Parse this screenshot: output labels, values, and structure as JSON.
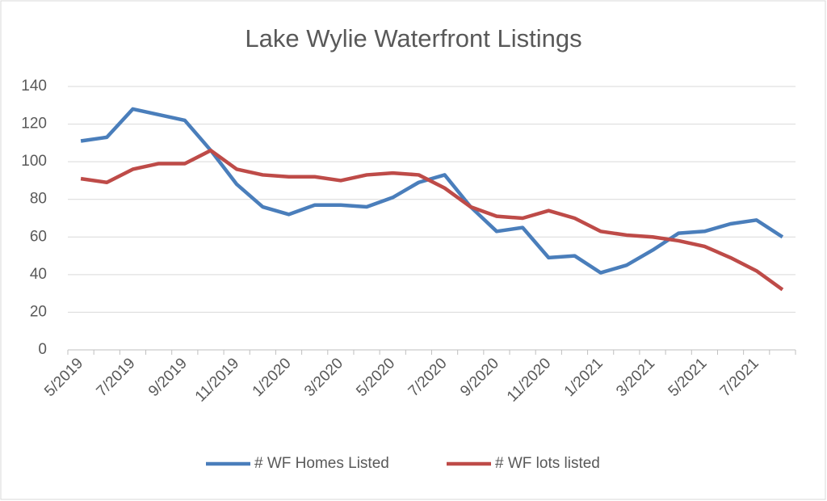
{
  "chart_data": {
    "type": "line",
    "title": "Lake Wylie Waterfront Listings",
    "categories": [
      "5/2019",
      null,
      "7/2019",
      null,
      "9/2019",
      null,
      "11/2019",
      null,
      "1/2020",
      null,
      "3/2020",
      null,
      "5/2020",
      null,
      "7/2020",
      null,
      "9/2020",
      null,
      "11/2020",
      null,
      "1/2021",
      null,
      "3/2021",
      null,
      "5/2021",
      null,
      "7/2021",
      null
    ],
    "series": [
      {
        "name": "# WF Homes Listed",
        "color": "#4a7ebb",
        "values": [
          111,
          113,
          128,
          125,
          122,
          106,
          88,
          76,
          72,
          77,
          77,
          76,
          81,
          89,
          93,
          76,
          63,
          65,
          49,
          50,
          41,
          45,
          53,
          62,
          63,
          67,
          69,
          60
        ]
      },
      {
        "name": "# WF lots listed",
        "color": "#be4b48",
        "values": [
          91,
          89,
          96,
          99,
          99,
          106,
          96,
          93,
          92,
          92,
          90,
          93,
          94,
          93,
          86,
          76,
          71,
          70,
          74,
          70,
          63,
          61,
          60,
          58,
          55,
          49,
          42,
          32
        ]
      }
    ],
    "ylim": [
      0,
      140
    ],
    "yticks": [
      0,
      20,
      40,
      60,
      80,
      100,
      120,
      140
    ],
    "grid": true,
    "legend": "bottom"
  }
}
